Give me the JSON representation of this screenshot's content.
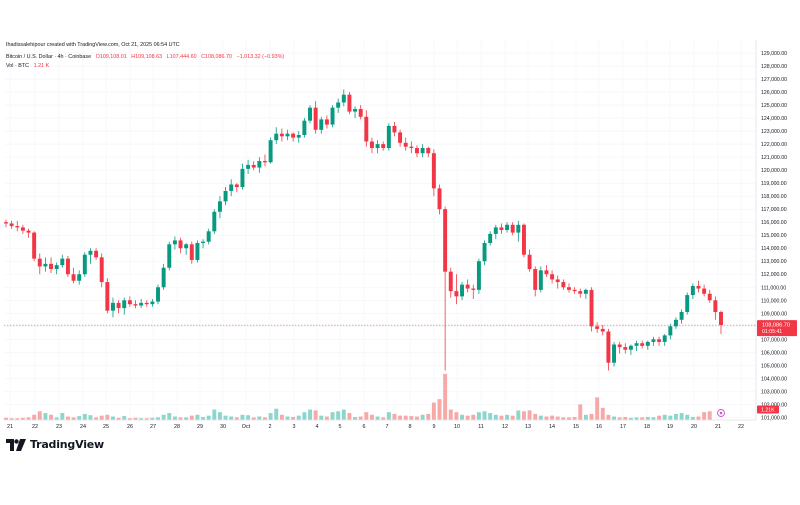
{
  "header": {
    "author_line": "Ihadissalehipour created with TradingView.com, Oct 21, 2025 06:54 UTC",
    "symbol": "Bitcoin / U.S. Dollar · 4h · Coinbase",
    "open": "O109,108.01",
    "high": "H109,108.63",
    "low": "L107,444.60",
    "close": "C108,086.70",
    "change": "−1,013.32 (−0.93%)",
    "vol_label": "Vol · BTC",
    "vol_value": "1.21 K"
  },
  "price_tag": {
    "value": "108,086.70",
    "countdown": "01:05:41"
  },
  "volume_tag": {
    "value": "1.21K"
  },
  "brand": {
    "name": "TradingView"
  },
  "colors": {
    "up": "#089981",
    "down": "#f23645",
    "up_vol": "#8dd6cc",
    "down_vol": "#f7a9a7",
    "grid": "#f0f3fa",
    "axis_text": "#131722"
  },
  "chart_data": {
    "type": "candlestick",
    "timeframe": "4h",
    "ylim": [
      100800,
      130000
    ],
    "y_ticks": [
      "129,000.00",
      "128,000.00",
      "127,000.00",
      "126,000.00",
      "125,000.00",
      "124,000.00",
      "123,000.00",
      "122,000.00",
      "121,000.00",
      "120,000.00",
      "119,000.00",
      "118,000.00",
      "117,000.00",
      "116,000.00",
      "115,000.00",
      "114,000.00",
      "113,000.00",
      "112,000.00",
      "111,000.00",
      "110,000.00",
      "109,000.00",
      "108,000.00",
      "107,000.00",
      "106,000.00",
      "105,000.00",
      "104,000.00",
      "103,000.00",
      "102,000.00",
      "101,000.00"
    ],
    "x_ticks": [
      "21",
      "22",
      "23",
      "24",
      "25",
      "26",
      "27",
      "28",
      "29",
      "30",
      "Oct",
      "2",
      "3",
      "4",
      "5",
      "6",
      "7",
      "8",
      "9",
      "10",
      "11",
      "12",
      "13",
      "14",
      "15",
      "16",
      "17",
      "18",
      "19",
      "20",
      "21",
      "22"
    ],
    "candles": [
      [
        116000,
        116200,
        115600,
        115900
      ],
      [
        115900,
        116100,
        115500,
        115700
      ],
      [
        115700,
        116100,
        115300,
        115600
      ],
      [
        115600,
        115800,
        115100,
        115350
      ],
      [
        115350,
        115500,
        114800,
        115200
      ],
      [
        115200,
        115300,
        113000,
        113200
      ],
      [
        113200,
        113600,
        112000,
        112600
      ],
      [
        112600,
        113300,
        112200,
        112800
      ],
      [
        112800,
        113300,
        112100,
        112400
      ],
      [
        112400,
        112900,
        112000,
        112700
      ],
      [
        112700,
        113500,
        112500,
        113200
      ],
      [
        113200,
        113400,
        111800,
        112000
      ],
      [
        112000,
        112500,
        111300,
        111500
      ],
      [
        111500,
        112300,
        111200,
        112000
      ],
      [
        112000,
        113700,
        111800,
        113500
      ],
      [
        113500,
        114000,
        112800,
        113800
      ],
      [
        113800,
        114000,
        113100,
        113300
      ],
      [
        113300,
        113600,
        111000,
        111400
      ],
      [
        111400,
        111700,
        109000,
        109200
      ],
      [
        109200,
        110200,
        108700,
        109800
      ],
      [
        109800,
        110000,
        109000,
        109400
      ],
      [
        109400,
        110200,
        108900,
        110000
      ],
      [
        110000,
        110300,
        109500,
        109700
      ],
      [
        109700,
        110000,
        109400,
        109600
      ],
      [
        109600,
        110100,
        109400,
        109800
      ],
      [
        109800,
        110000,
        109500,
        109700
      ],
      [
        109700,
        110100,
        109500,
        109900
      ],
      [
        109900,
        111200,
        109700,
        111000
      ],
      [
        111000,
        112800,
        110800,
        112500
      ],
      [
        112500,
        114500,
        112300,
        114300
      ],
      [
        114300,
        114900,
        113900,
        114600
      ],
      [
        114600,
        114800,
        113600,
        114000
      ],
      [
        114000,
        114400,
        113500,
        114300
      ],
      [
        114300,
        114500,
        112800,
        113100
      ],
      [
        113100,
        114600,
        112900,
        114400
      ],
      [
        114400,
        114700,
        114000,
        114500
      ],
      [
        114500,
        115500,
        114300,
        115300
      ],
      [
        115300,
        117000,
        115100,
        116800
      ],
      [
        116800,
        118000,
        116300,
        117600
      ],
      [
        117600,
        118700,
        117300,
        118400
      ],
      [
        118400,
        119300,
        118000,
        118900
      ],
      [
        118900,
        119000,
        118300,
        118700
      ],
      [
        118700,
        120500,
        118500,
        120100
      ],
      [
        120100,
        120800,
        119700,
        120400
      ],
      [
        120400,
        120700,
        120000,
        120200
      ],
      [
        120200,
        121000,
        119800,
        120700
      ],
      [
        120700,
        121200,
        120300,
        120600
      ],
      [
        120600,
        122500,
        120500,
        122300
      ],
      [
        122300,
        123300,
        122000,
        122800
      ],
      [
        122800,
        123200,
        122200,
        122600
      ],
      [
        122600,
        123100,
        122300,
        122800
      ],
      [
        122800,
        122900,
        122200,
        122500
      ],
      [
        122500,
        123000,
        122100,
        122700
      ],
      [
        122700,
        124000,
        122500,
        123800
      ],
      [
        123800,
        125000,
        123600,
        124800
      ],
      [
        124800,
        125300,
        122800,
        123100
      ],
      [
        123100,
        124100,
        122800,
        123900
      ],
      [
        123900,
        124200,
        123200,
        123500
      ],
      [
        123500,
        125000,
        123300,
        124800
      ],
      [
        124800,
        125500,
        124400,
        125200
      ],
      [
        125200,
        126200,
        124900,
        125800
      ],
      [
        125800,
        126000,
        124300,
        124500
      ],
      [
        124500,
        124900,
        124000,
        124700
      ],
      [
        124700,
        125000,
        123900,
        124100
      ],
      [
        124100,
        124600,
        121800,
        122200
      ],
      [
        122200,
        122500,
        121300,
        121700
      ],
      [
        121700,
        122300,
        121300,
        122000
      ],
      [
        122000,
        122200,
        121500,
        121700
      ],
      [
        121700,
        123600,
        121500,
        123400
      ],
      [
        123400,
        123700,
        122600,
        122900
      ],
      [
        122900,
        123100,
        121800,
        122100
      ],
      [
        122100,
        122500,
        121500,
        121800
      ],
      [
        121800,
        122200,
        121300,
        121700
      ],
      [
        121700,
        121900,
        121000,
        121300
      ],
      [
        121300,
        122000,
        121000,
        121700
      ],
      [
        121700,
        121800,
        121000,
        121300
      ],
      [
        121300,
        121600,
        118000,
        118600
      ],
      [
        118600,
        118900,
        116600,
        117000
      ],
      [
        117000,
        117200,
        104600,
        112200
      ],
      [
        112200,
        112500,
        110200,
        110700
      ],
      [
        110700,
        112000,
        109700,
        110300
      ],
      [
        110300,
        111400,
        110000,
        111200
      ],
      [
        111200,
        111600,
        110600,
        110900
      ],
      [
        110900,
        111200,
        110100,
        110800
      ],
      [
        110800,
        113200,
        110500,
        113000
      ],
      [
        113000,
        114600,
        112700,
        114400
      ],
      [
        114400,
        115300,
        114200,
        115100
      ],
      [
        115100,
        115800,
        114700,
        115600
      ],
      [
        115600,
        115900,
        115100,
        115400
      ],
      [
        115400,
        116000,
        115200,
        115800
      ],
      [
        115800,
        116000,
        115000,
        115200
      ],
      [
        115200,
        116100,
        114500,
        115800
      ],
      [
        115800,
        115900,
        113300,
        113500
      ],
      [
        113500,
        113900,
        112200,
        112400
      ],
      [
        112400,
        112600,
        110300,
        110800
      ],
      [
        110800,
        112600,
        110600,
        112300
      ],
      [
        112300,
        112700,
        111800,
        112000
      ],
      [
        112000,
        112300,
        111300,
        111600
      ],
      [
        111600,
        111900,
        110900,
        111400
      ],
      [
        111400,
        111600,
        110800,
        111000
      ],
      [
        111000,
        111300,
        110600,
        110800
      ],
      [
        110800,
        111000,
        110500,
        110700
      ],
      [
        110700,
        110900,
        110200,
        110500
      ],
      [
        110500,
        110900,
        110100,
        110800
      ],
      [
        110800,
        111000,
        107600,
        108000
      ],
      [
        108000,
        108300,
        107500,
        107800
      ],
      [
        107800,
        108100,
        107300,
        107600
      ],
      [
        107600,
        107800,
        104600,
        105200
      ],
      [
        105200,
        106800,
        104900,
        106600
      ],
      [
        106600,
        106800,
        105900,
        106400
      ],
      [
        106400,
        106700,
        105900,
        106200
      ],
      [
        106200,
        106600,
        105800,
        106500
      ],
      [
        106500,
        106900,
        106100,
        106700
      ],
      [
        106700,
        106900,
        106300,
        106500
      ],
      [
        106500,
        106900,
        106200,
        106800
      ],
      [
        106800,
        107200,
        106500,
        107000
      ],
      [
        107000,
        107200,
        106500,
        106800
      ],
      [
        106800,
        107400,
        106500,
        107300
      ],
      [
        107300,
        108200,
        107000,
        108000
      ],
      [
        108000,
        108700,
        107800,
        108500
      ],
      [
        108500,
        109300,
        108200,
        109100
      ],
      [
        109100,
        110600,
        108900,
        110400
      ],
      [
        110400,
        111300,
        110100,
        111100
      ],
      [
        111100,
        111500,
        110600,
        110900
      ],
      [
        110900,
        111200,
        110300,
        110500
      ],
      [
        110500,
        110800,
        109800,
        110000
      ],
      [
        110000,
        110300,
        108500,
        109100
      ],
      [
        109100,
        109200,
        107400,
        108100
      ]
    ],
    "volumes": [
      0.25,
      0.2,
      0.2,
      0.25,
      0.3,
      0.6,
      1.0,
      0.8,
      0.6,
      0.3,
      0.8,
      0.4,
      0.3,
      0.45,
      0.7,
      0.55,
      0.3,
      0.5,
      0.6,
      0.4,
      0.25,
      0.45,
      0.2,
      0.25,
      0.2,
      0.2,
      0.25,
      0.3,
      0.6,
      0.8,
      0.4,
      0.3,
      0.3,
      0.5,
      0.6,
      0.35,
      0.5,
      1.2,
      0.9,
      0.5,
      0.4,
      0.3,
      0.6,
      0.55,
      0.3,
      0.4,
      0.3,
      0.8,
      1.3,
      0.6,
      0.4,
      0.35,
      0.5,
      0.9,
      1.2,
      1.1,
      0.5,
      0.4,
      0.9,
      1.0,
      1.2,
      0.8,
      0.35,
      0.4,
      0.9,
      0.6,
      0.4,
      0.3,
      0.9,
      0.7,
      0.5,
      0.5,
      0.45,
      0.4,
      0.6,
      0.7,
      2.0,
      2.4,
      5.3,
      1.2,
      0.9,
      0.6,
      0.5,
      0.6,
      0.9,
      1.0,
      0.8,
      0.6,
      0.5,
      0.6,
      0.5,
      1.1,
      1.0,
      1.1,
      0.7,
      0.5,
      0.4,
      0.5,
      0.4,
      0.3,
      0.3,
      0.35,
      1.8,
      0.6,
      0.7,
      2.6,
      1.4,
      0.6,
      0.4,
      0.3,
      0.35,
      0.25,
      0.3,
      0.3,
      0.35,
      0.3,
      0.5,
      0.6,
      0.5,
      0.7,
      0.8,
      0.6,
      0.35,
      0.4,
      0.9,
      1.0
    ],
    "volume_ylim": [
      0,
      9.2
    ],
    "last_price": 108086.7,
    "last_volume": 1.21
  }
}
